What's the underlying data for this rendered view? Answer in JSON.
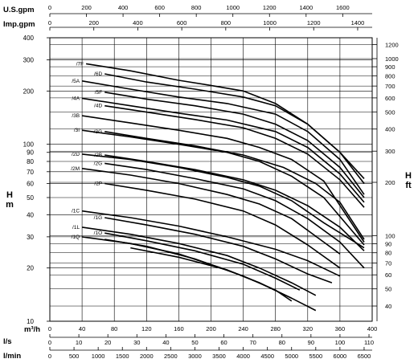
{
  "chart_data": {
    "type": "line",
    "title": "",
    "ylog": true,
    "grid": true,
    "xaxis": {
      "label": "m³/h",
      "min": 0,
      "max": 400,
      "ticks": [
        0,
        40,
        80,
        120,
        160,
        200,
        240,
        280,
        320,
        360,
        400
      ]
    },
    "top_axes": [
      {
        "label": "U.S.gpm",
        "min": 0,
        "max": 1761,
        "ticks": [
          0,
          200,
          400,
          600,
          800,
          1000,
          1200,
          1400,
          1600
        ]
      },
      {
        "label": "Imp.gpm",
        "min": 0,
        "max": 1466,
        "ticks": [
          0,
          200,
          400,
          600,
          800,
          1000,
          1200,
          1400
        ]
      }
    ],
    "bottom_axes": [
      {
        "label": "l/s",
        "min": 0,
        "max": 111.1,
        "ticks": [
          0,
          10,
          20,
          30,
          40,
          50,
          60,
          70,
          80,
          90,
          100,
          110
        ]
      },
      {
        "label": "l/min",
        "min": 0,
        "max": 6667,
        "ticks": [
          0,
          500,
          1000,
          1500,
          2000,
          2500,
          3000,
          3500,
          4000,
          4500,
          5000,
          5500,
          6000,
          6500
        ]
      }
    ],
    "yaxis_left": {
      "label_top": "H",
      "label_bottom": "m",
      "min": 10,
      "max": 400,
      "ticks": [
        10,
        20,
        30,
        40,
        50,
        60,
        70,
        80,
        90,
        100,
        200,
        300,
        400
      ]
    },
    "yaxis_right": {
      "label_top": "H",
      "label_bottom": "ft",
      "ticks": [
        40,
        50,
        60,
        70,
        80,
        90,
        100,
        200,
        300,
        400,
        500,
        600,
        700,
        800,
        900,
        1000,
        1200
      ]
    },
    "series": [
      {
        "name": "/7F",
        "x": [
          45,
          100,
          160,
          200,
          240,
          280,
          320,
          360,
          390
        ],
        "y": [
          285,
          260,
          230,
          215,
          200,
          170,
          130,
          90,
          64
        ]
      },
      {
        "name": "/6D",
        "x": [
          68,
          120,
          180,
          240,
          280,
          320,
          360,
          390
        ],
        "y": [
          250,
          225,
          205,
          185,
          165,
          130,
          90,
          60
        ]
      },
      {
        "name": "/5A",
        "x": [
          40,
          100,
          160,
          220,
          280,
          320,
          360,
          390
        ],
        "y": [
          228,
          205,
          185,
          170,
          148,
          118,
          82,
          52
        ]
      },
      {
        "name": "/5F",
        "x": [
          68,
          120,
          180,
          240,
          280,
          320,
          360,
          390
        ],
        "y": [
          197,
          180,
          165,
          148,
          130,
          105,
          74,
          50
        ]
      },
      {
        "name": "/4A",
        "x": [
          40,
          100,
          160,
          220,
          280,
          320,
          360,
          390
        ],
        "y": [
          182,
          165,
          150,
          137,
          118,
          96,
          68,
          47
        ]
      },
      {
        "name": "/4D",
        "x": [
          68,
          120,
          180,
          240,
          280,
          320,
          360,
          390
        ],
        "y": [
          165,
          152,
          138,
          124,
          108,
          88,
          63,
          44
        ]
      },
      {
        "name": "/3B",
        "x": [
          40,
          100,
          160,
          220,
          260,
          300,
          340,
          390
        ],
        "y": [
          145,
          132,
          120,
          108,
          96,
          82,
          62,
          28
        ]
      },
      {
        "name": "/3I",
        "x": [
          40,
          100,
          160,
          220,
          260,
          300,
          340,
          390
        ],
        "y": [
          120,
          110,
          100,
          90,
          80,
          66,
          50,
          27
        ]
      },
      {
        "name": "/3G",
        "x": [
          68,
          120,
          180,
          240,
          290,
          330,
          360,
          390
        ],
        "y": [
          118,
          108,
          98,
          87,
          74,
          60,
          47,
          29
        ]
      },
      {
        "name": "/2D",
        "x": [
          40,
          100,
          160,
          220,
          260,
          300,
          340,
          390
        ],
        "y": [
          88,
          82,
          74,
          65,
          58,
          48,
          36,
          26
        ]
      },
      {
        "name": "/2B",
        "x": [
          68,
          120,
          180,
          240,
          280,
          320,
          360,
          390
        ],
        "y": [
          87,
          80,
          72,
          63,
          55,
          45,
          34,
          25
        ]
      },
      {
        "name": "/2G",
        "x": [
          68,
          120,
          180,
          240,
          280,
          320,
          360,
          390
        ],
        "y": [
          78,
          72,
          64,
          56,
          48,
          38,
          28,
          20
        ]
      },
      {
        "name": "/2M",
        "x": [
          40,
          100,
          160,
          220,
          260,
          300,
          340,
          360
        ],
        "y": [
          73,
          67,
          60,
          52,
          46,
          38,
          28,
          24
        ]
      },
      {
        "name": "/2P",
        "x": [
          68,
          120,
          180,
          240,
          280,
          320,
          360
        ],
        "y": [
          60,
          55,
          49,
          42,
          35,
          27,
          20
        ]
      },
      {
        "name": "/1C",
        "x": [
          40,
          100,
          160,
          220,
          280,
          320,
          360
        ],
        "y": [
          42,
          38.5,
          34.5,
          30,
          25.5,
          22,
          18
        ]
      },
      {
        "name": "/1G",
        "x": [
          68,
          120,
          180,
          240,
          280,
          320,
          350
        ],
        "y": [
          38.5,
          35,
          31,
          26.5,
          22.5,
          18.5,
          16.5
        ]
      },
      {
        "name": "/1L",
        "x": [
          40,
          100,
          160,
          220,
          260,
          300,
          330
        ],
        "y": [
          34,
          31,
          27.5,
          23.5,
          20,
          16.5,
          14
        ]
      },
      {
        "name": "/1O",
        "x": [
          68,
          120,
          180,
          240,
          280,
          310
        ],
        "y": [
          31.5,
          28.5,
          25,
          21,
          17.5,
          15
        ]
      },
      {
        "name": "/1Q",
        "x": [
          40,
          100,
          160,
          220,
          260,
          300
        ],
        "y": [
          30,
          27.5,
          24,
          19.5,
          16.5,
          13.5
        ]
      },
      {
        "name": "",
        "x": [
          100,
          160,
          220,
          260,
          300,
          330
        ],
        "y": [
          26,
          23,
          19.5,
          16.5,
          13.5,
          11.5
        ]
      },
      {
        "name": "",
        "x": [
          68,
          120,
          180,
          240,
          280,
          300
        ],
        "y": [
          29,
          26.5,
          22.5,
          18,
          15,
          13
        ]
      }
    ]
  }
}
